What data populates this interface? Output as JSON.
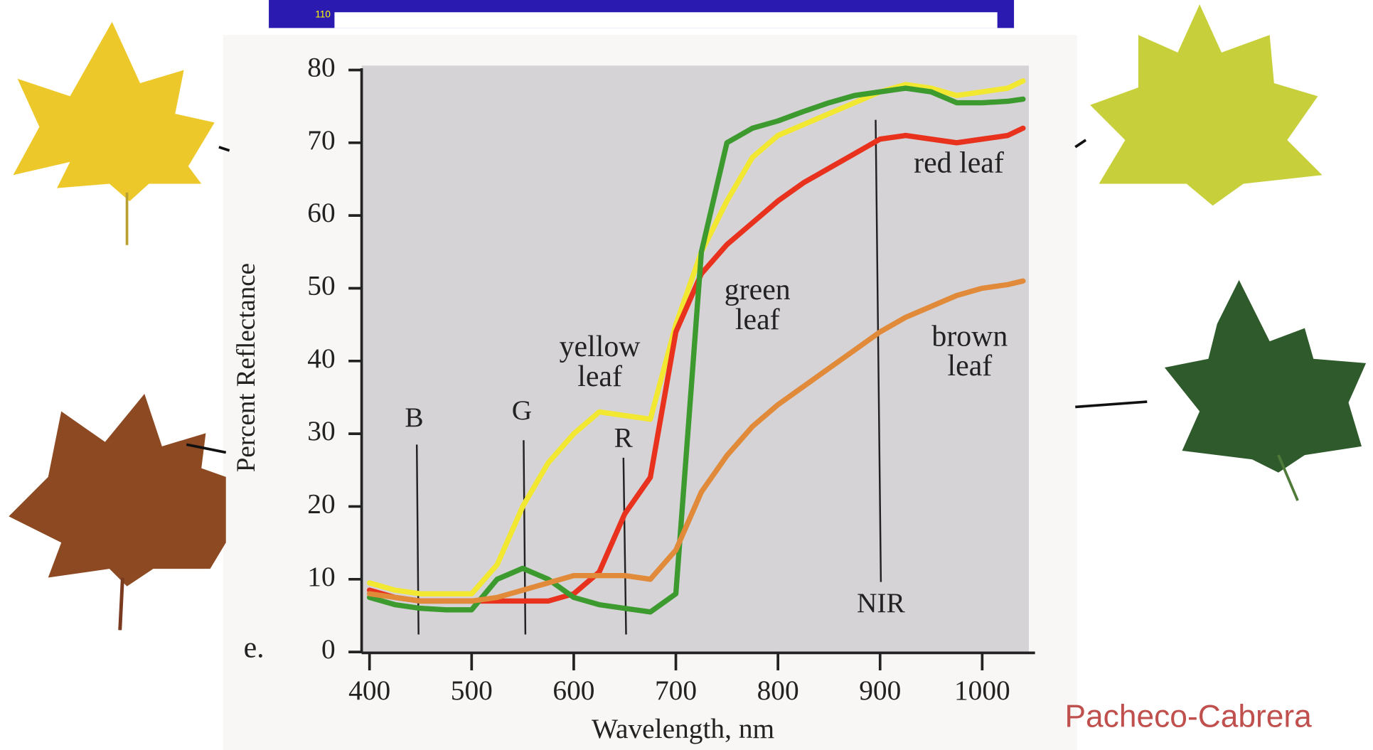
{
  "chart_data": {
    "type": "line",
    "header_strip": "110",
    "panel_label": "e.",
    "credit": "Pacheco-Cabrera",
    "xlabel": "Wavelength, nm",
    "ylabel": "Percent Reflectance",
    "annotations": [
      "B",
      "G",
      "R",
      "NIR"
    ],
    "x": [
      400,
      425,
      450,
      475,
      500,
      525,
      550,
      575,
      600,
      625,
      650,
      675,
      700,
      725,
      750,
      775,
      800,
      825,
      850,
      875,
      900,
      925,
      950,
      975,
      1000,
      1025,
      1040
    ],
    "series": [
      {
        "name": "yellow leaf",
        "color": "#f2e832",
        "values": [
          9.5,
          8.5,
          8,
          8,
          8,
          12,
          20,
          26,
          30,
          33,
          32.5,
          32,
          45,
          55,
          62,
          68,
          71,
          72.5,
          74,
          75.5,
          77,
          78,
          77.5,
          76.5,
          77,
          77.5,
          78.5
        ]
      },
      {
        "name": "red leaf",
        "color": "#e8321e",
        "values": [
          8.5,
          7.5,
          7,
          7,
          7,
          7,
          7,
          7,
          8,
          11,
          19,
          24,
          44,
          52,
          56,
          59,
          62,
          64.5,
          66.5,
          68.5,
          70.5,
          71,
          70.5,
          70,
          70.5,
          71,
          72
        ]
      },
      {
        "name": "green leaf",
        "color": "#3c9a2e",
        "values": [
          7.5,
          6.5,
          6,
          5.8,
          5.8,
          10,
          11.5,
          10,
          7.5,
          6.5,
          6,
          5.5,
          8,
          55,
          70,
          72,
          73,
          74.3,
          75.5,
          76.5,
          77,
          77.5,
          77,
          75.5,
          75.5,
          75.7,
          76
        ]
      },
      {
        "name": "brown leaf",
        "color": "#e08a3a",
        "values": [
          8,
          7.5,
          7,
          7,
          7,
          7.5,
          8.5,
          9.5,
          10.5,
          10.5,
          10.5,
          10,
          14,
          22,
          27,
          31,
          34,
          36.5,
          39,
          41.5,
          44,
          46,
          47.5,
          49,
          50,
          50.5,
          51
        ]
      }
    ],
    "xlim": [
      400,
      1050
    ],
    "xticks": [
      400,
      500,
      600,
      700,
      800,
      900,
      1000
    ],
    "ylim": [
      0,
      80
    ],
    "yticks": [
      0,
      10,
      20,
      30,
      40,
      50,
      60,
      70,
      80
    ]
  }
}
